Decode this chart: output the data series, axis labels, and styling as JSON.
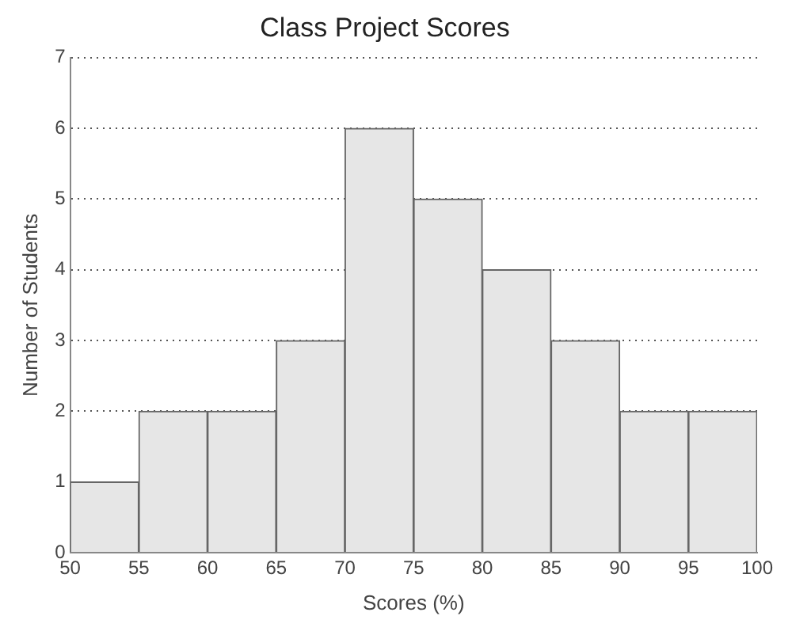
{
  "chart_data": {
    "type": "histogram",
    "title": "Class Project Scores",
    "xlabel": "Scores (%)",
    "ylabel": "Number of Students",
    "bins": [
      50,
      55,
      60,
      65,
      70,
      75,
      80,
      85,
      90,
      95,
      100
    ],
    "values": [
      1,
      2,
      2,
      3,
      6,
      5,
      4,
      3,
      2,
      2
    ],
    "color": "#e6e6e6",
    "xlim": [
      50,
      100
    ],
    "xticks": [
      50,
      55,
      60,
      65,
      70,
      75,
      80,
      85,
      90,
      95,
      100
    ],
    "ylim": [
      0,
      7
    ],
    "yticks": [
      0,
      1,
      2,
      3,
      4,
      5,
      6,
      7
    ],
    "grid": "y",
    "legend": false
  }
}
